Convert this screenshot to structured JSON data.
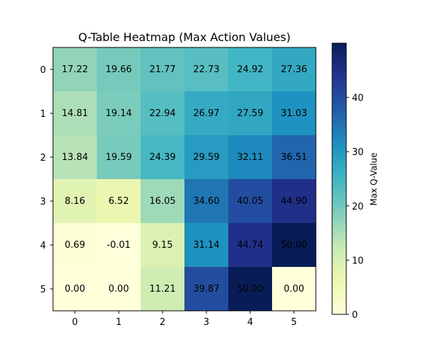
{
  "chart_data": {
    "type": "heatmap",
    "title": "Q-Table Heatmap (Max Action Values)",
    "xlabel": "",
    "ylabel": "",
    "x_categories": [
      "0",
      "1",
      "2",
      "3",
      "4",
      "5"
    ],
    "y_categories": [
      "0",
      "1",
      "2",
      "3",
      "4",
      "5"
    ],
    "values": [
      [
        "17.22",
        "19.66",
        "21.77",
        "22.73",
        "24.92",
        "27.36"
      ],
      [
        "14.81",
        "19.14",
        "22.94",
        "26.97",
        "27.59",
        "31.03"
      ],
      [
        "13.84",
        "19.59",
        "24.39",
        "29.59",
        "32.11",
        "36.51"
      ],
      [
        "8.16",
        "6.52",
        "16.05",
        "34.60",
        "40.05",
        "44.90"
      ],
      [
        "0.69",
        "-0.01",
        "9.15",
        "31.14",
        "44.74",
        "50.00"
      ],
      [
        "0.00",
        "0.00",
        "11.21",
        "39.87",
        "50.00",
        "0.00"
      ]
    ],
    "colormap": "YlGnBu",
    "colorbar": {
      "label": "Max Q-Value",
      "min": 0,
      "max": 50,
      "ticks": [
        "0",
        "10",
        "20",
        "30",
        "40"
      ]
    },
    "grid": false
  }
}
